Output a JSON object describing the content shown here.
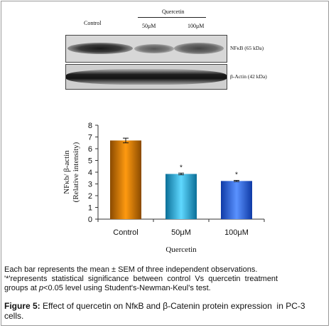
{
  "blot": {
    "lane_control": "Control",
    "treatment_group": "Quercetin",
    "lane_50": "50μM",
    "lane_100": "100μM",
    "band1_label": "NFκB (65 kDa)",
    "band2_label": "β-Actin (42 kDa)"
  },
  "chart_data": {
    "type": "bar",
    "categories": [
      "Control",
      "50μM",
      "100μM"
    ],
    "values": [
      6.7,
      3.85,
      3.25
    ],
    "errors": [
      0.2,
      0.07,
      0.05
    ],
    "significance": [
      "",
      "*",
      "*"
    ],
    "ylim": [
      0,
      8
    ],
    "yticks": [
      "0",
      "1",
      "2",
      "3",
      "4",
      "5",
      "6",
      "7",
      "8"
    ],
    "ylabel_line1": "NFκb/ β-actin",
    "ylabel_line2": "(Relative  intensity)",
    "xlabel": "Quercetin",
    "colors": [
      "#d97800",
      "#1fb0e8",
      "#2566e8"
    ],
    "grid": false
  },
  "caption": {
    "line1": "Each bar represents the mean ± SEM of three independent observations.",
    "line2": "'*'represents  statistical  significance  between  control  Vs  quercetin  treatment",
    "line3_pre": "groups at ",
    "line3_p": "p",
    "line3_post": "<0.05 level using Student's-Newman-Keul's test.",
    "figure_label": "Figure 5:",
    "figure_text": " Effect of quercetin on NfκB and β-Catenin protein expression  in PC-3",
    "figure_text2": "cells."
  }
}
